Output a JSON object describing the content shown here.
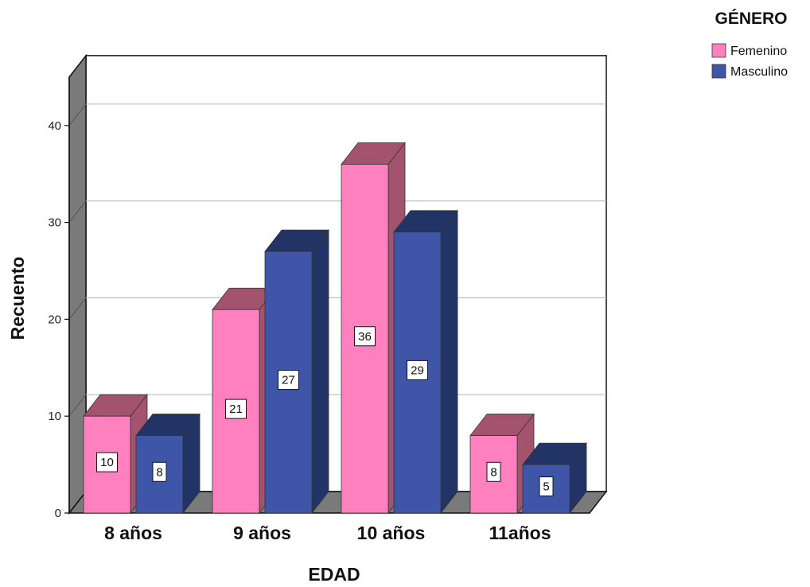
{
  "chart_data": {
    "type": "bar",
    "categories": [
      "8 años",
      "9 años",
      "10 años",
      "11años"
    ],
    "series": [
      {
        "name": "Femenino",
        "values": [
          10,
          21,
          36,
          8
        ],
        "color": "#FF80BF",
        "top_color": "#A3536D",
        "side_color": "#A3536D"
      },
      {
        "name": "Masculino",
        "values": [
          8,
          27,
          29,
          5
        ],
        "color": "#3F56A8",
        "top_color": "#223466",
        "side_color": "#223466"
      }
    ],
    "xlabel": "EDAD",
    "ylabel": "Recuento",
    "ylim": [
      0,
      45
    ],
    "yticks": [
      0,
      10,
      20,
      30,
      40
    ],
    "grid": true,
    "legend_title": "GÉNERO",
    "legend_position": "top-right",
    "three_d": true
  }
}
